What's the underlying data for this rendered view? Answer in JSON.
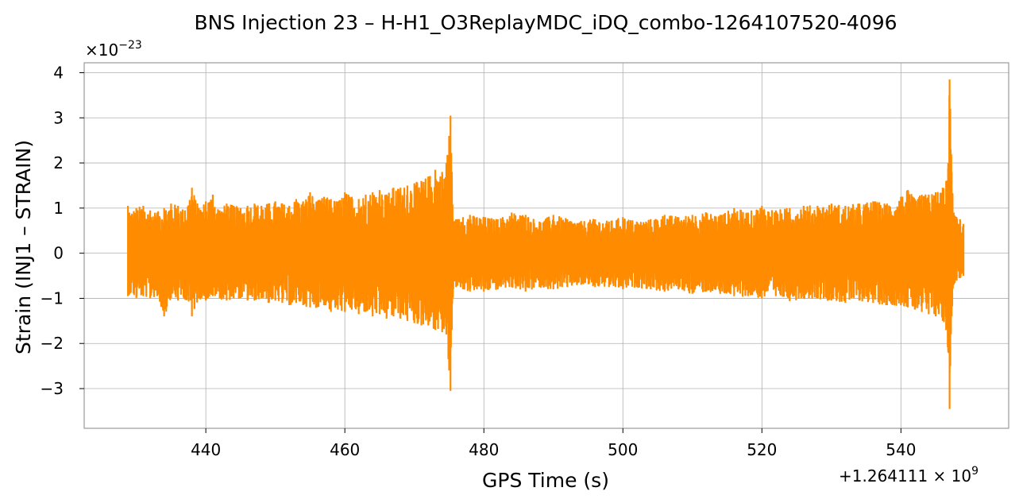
{
  "chart_data": {
    "type": "line",
    "title": "BNS Injection 23 – H-H1_O3ReplayMDC_iDQ_combo-1264107520-4096",
    "xlabel": "GPS Time (s)",
    "ylabel": "Strain (INJ1 – STRAIN)",
    "x_offset_label": "+1.264111 × 10",
    "x_offset_exp": "9",
    "y_scale_label": "×10",
    "y_scale_exp": "−23",
    "xlim": [
      422.5,
      555.5
    ],
    "ylim": [
      -3.88,
      4.22
    ],
    "x_ticks": [
      440,
      460,
      480,
      500,
      520,
      540
    ],
    "x_tick_labels": [
      "440",
      "460",
      "480",
      "500",
      "520",
      "540"
    ],
    "y_ticks": [
      -3,
      -2,
      -1,
      0,
      1,
      2,
      3,
      4
    ],
    "y_tick_labels": [
      "−3",
      "−2",
      "−1",
      "0",
      "1",
      "2",
      "3",
      "4"
    ],
    "grid": true,
    "line_color": "#ff8c00",
    "series": [
      {
        "x": [
          428.8,
          429.0,
          430.0,
          431.0,
          432.0,
          433.0,
          434.0,
          435.0,
          436.0,
          437.0,
          438.0,
          439.0,
          440.0,
          441.0,
          442.0,
          443.0,
          444.0,
          445.0,
          446.0,
          447.0,
          448.0,
          449.0,
          450.0,
          451.0,
          452.0,
          453.0,
          454.0,
          455.0,
          456.0,
          457.0,
          458.0,
          459.0,
          460.0,
          461.0,
          462.0,
          463.0,
          464.0,
          465.0,
          466.0,
          467.0,
          468.0,
          469.0,
          470.0,
          471.0,
          472.0,
          473.0,
          474.0,
          474.6,
          475.0,
          475.2,
          475.4,
          475.6,
          476.0,
          477.0,
          478.0,
          479.0,
          480.0,
          482.0,
          484.0,
          486.0,
          488.0,
          490.0,
          492.0,
          494.0,
          496.0,
          498.0,
          500.0,
          502.0,
          504.0,
          506.0,
          508.0,
          510.0,
          512.0,
          514.0,
          516.0,
          518.0,
          520.0,
          522.0,
          524.0,
          526.0,
          528.0,
          530.0,
          532.0,
          534.0,
          536.0,
          538.0,
          540.0,
          541.0,
          542.0,
          543.0,
          544.0,
          545.0,
          546.0,
          546.5,
          546.8,
          547.0,
          547.1,
          547.3,
          547.6,
          548.0,
          548.5,
          549.0
        ],
        "upper": [
          1.05,
          0.9,
          1.0,
          1.05,
          0.95,
          0.9,
          1.0,
          1.1,
          1.05,
          0.95,
          1.45,
          1.0,
          1.15,
          1.3,
          0.95,
          1.1,
          1.05,
          1.0,
          1.05,
          1.1,
          1.05,
          1.1,
          1.15,
          1.1,
          1.05,
          1.2,
          1.15,
          1.35,
          1.15,
          1.25,
          1.2,
          1.15,
          1.35,
          1.25,
          1.2,
          1.3,
          1.35,
          1.4,
          1.3,
          1.45,
          1.45,
          1.5,
          1.55,
          1.6,
          1.7,
          1.85,
          1.8,
          2.0,
          2.6,
          3.05,
          1.8,
          0.7,
          0.75,
          0.8,
          0.85,
          0.8,
          0.8,
          0.75,
          0.9,
          0.85,
          0.7,
          0.85,
          0.75,
          0.7,
          0.75,
          0.7,
          0.8,
          0.7,
          0.75,
          0.85,
          0.8,
          0.85,
          0.9,
          0.85,
          1.0,
          0.9,
          1.05,
          0.95,
          1.0,
          1.05,
          1.05,
          1.1,
          1.05,
          1.1,
          1.15,
          1.1,
          1.25,
          1.4,
          1.2,
          1.3,
          1.3,
          1.35,
          1.45,
          1.6,
          2.0,
          3.85,
          3.2,
          1.8,
          0.9,
          0.8,
          0.75,
          0.65
        ],
        "lower": [
          -0.95,
          -0.9,
          -1.0,
          -0.95,
          -1.0,
          -0.95,
          -1.4,
          -1.0,
          -1.05,
          -1.0,
          -1.4,
          -1.0,
          -1.05,
          -0.95,
          -1.0,
          -1.05,
          -1.0,
          -1.0,
          -1.05,
          -1.05,
          -1.0,
          -1.1,
          -1.05,
          -1.1,
          -1.15,
          -1.1,
          -1.15,
          -1.2,
          -1.2,
          -1.15,
          -1.3,
          -1.25,
          -1.3,
          -1.25,
          -1.35,
          -1.3,
          -1.4,
          -1.35,
          -1.45,
          -1.4,
          -1.45,
          -1.5,
          -1.55,
          -1.6,
          -1.6,
          -1.7,
          -1.75,
          -1.8,
          -2.6,
          -3.05,
          -1.7,
          -0.8,
          -0.75,
          -0.8,
          -0.85,
          -0.8,
          -0.85,
          -0.8,
          -0.75,
          -0.85,
          -0.75,
          -0.8,
          -0.75,
          -0.7,
          -0.75,
          -0.75,
          -0.8,
          -0.75,
          -0.8,
          -0.85,
          -0.8,
          -0.9,
          -0.85,
          -0.9,
          -0.95,
          -0.95,
          -1.0,
          -0.95,
          -1.05,
          -1.0,
          -1.0,
          -1.05,
          -1.1,
          -1.05,
          -1.1,
          -1.15,
          -1.15,
          -1.2,
          -1.25,
          -1.3,
          -1.35,
          -1.4,
          -1.5,
          -1.7,
          -2.2,
          -3.45,
          -2.5,
          -1.4,
          -0.7,
          -0.6,
          -0.55,
          -0.5
        ]
      }
    ]
  }
}
